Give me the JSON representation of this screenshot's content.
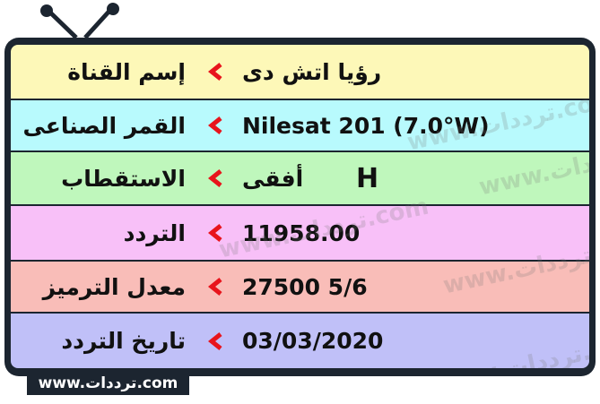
{
  "colors": {
    "frame": "#1c2530",
    "arrow": "#e8141c",
    "rows": [
      "#fdf8b8",
      "#b8fafd",
      "#bff7bc",
      "#f8c0f8",
      "#f9bdb8",
      "#c0c0f8"
    ]
  },
  "rows": [
    {
      "label": "إسم القناة",
      "value": "رؤيا اتش دى"
    },
    {
      "label": "القمر الصناعى",
      "value": "Nilesat 201 (7.0°W)"
    },
    {
      "label": "الاستقطاب",
      "value": "أفقى",
      "extra": "H"
    },
    {
      "label": "التردد",
      "value": "11958.00"
    },
    {
      "label": "معدل الترميز",
      "value": "27500 5/6"
    },
    {
      "label": "تاريخ التردد",
      "value": "03/03/2020"
    }
  ],
  "watermark": "www.ترددات.com",
  "footer": "www.ترددات.com"
}
